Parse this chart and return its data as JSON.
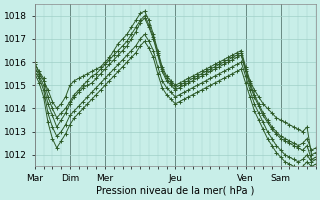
{
  "background_color": "#c8eee8",
  "grid_color": "#a0d0c8",
  "line_color": "#2d5a27",
  "marker_color": "#2d5a27",
  "xlabel": "Pression niveau de la mer( hPa )",
  "ylim": [
    1011.5,
    1018.5
  ],
  "yticks": [
    1012,
    1013,
    1014,
    1015,
    1016,
    1017,
    1018
  ],
  "day_labels": [
    "Mar",
    "Dim",
    "Mer",
    "Jeu",
    "Ven",
    "Sam"
  ],
  "day_tick_positions": [
    0,
    8,
    16,
    32,
    48,
    56
  ],
  "day_line_positions": [
    0,
    8,
    16,
    32,
    48,
    56,
    64
  ],
  "xmax": 64,
  "series": [
    [
      1016.0,
      1015.5,
      1015.2,
      1014.8,
      1014.3,
      1014.0,
      1014.2,
      1014.5,
      1015.0,
      1015.2,
      1015.3,
      1015.4,
      1015.5,
      1015.6,
      1015.7,
      1015.8,
      1016.0,
      1016.2,
      1016.5,
      1016.8,
      1017.0,
      1017.2,
      1017.5,
      1017.8,
      1018.1,
      1018.2,
      1017.8,
      1017.2,
      1016.5,
      1015.8,
      1015.4,
      1015.2,
      1015.0,
      1015.1,
      1015.2,
      1015.3,
      1015.4,
      1015.5,
      1015.6,
      1015.7,
      1015.8,
      1015.9,
      1016.0,
      1016.1,
      1016.2,
      1016.3,
      1016.4,
      1016.5,
      1015.8,
      1015.2,
      1014.8,
      1014.5,
      1014.2,
      1014.0,
      1013.8,
      1013.6,
      1013.5,
      1013.4,
      1013.3,
      1013.2,
      1013.1,
      1013.0,
      1013.2,
      1012.0,
      1012.1
    ],
    [
      1015.8,
      1015.4,
      1015.0,
      1014.2,
      1013.7,
      1013.2,
      1013.5,
      1013.8,
      1014.2,
      1014.5,
      1014.7,
      1014.9,
      1015.0,
      1015.1,
      1015.3,
      1015.5,
      1015.7,
      1015.9,
      1016.1,
      1016.3,
      1016.5,
      1016.7,
      1017.0,
      1017.3,
      1017.7,
      1017.9,
      1017.5,
      1017.0,
      1016.3,
      1015.6,
      1015.2,
      1015.0,
      1014.8,
      1014.9,
      1015.0,
      1015.1,
      1015.2,
      1015.3,
      1015.4,
      1015.5,
      1015.6,
      1015.7,
      1015.8,
      1015.9,
      1016.0,
      1016.1,
      1016.2,
      1016.3,
      1015.6,
      1015.0,
      1014.5,
      1014.1,
      1013.7,
      1013.4,
      1013.1,
      1012.9,
      1012.7,
      1012.6,
      1012.5,
      1012.4,
      1012.3,
      1012.2,
      1012.4,
      1011.8,
      1011.9
    ],
    [
      1015.6,
      1015.3,
      1014.8,
      1013.8,
      1013.2,
      1012.8,
      1013.0,
      1013.3,
      1013.7,
      1013.9,
      1014.1,
      1014.3,
      1014.5,
      1014.7,
      1014.9,
      1015.1,
      1015.3,
      1015.5,
      1015.7,
      1015.9,
      1016.1,
      1016.3,
      1016.5,
      1016.7,
      1017.0,
      1017.2,
      1016.9,
      1016.5,
      1015.8,
      1015.2,
      1014.9,
      1014.7,
      1014.5,
      1014.6,
      1014.7,
      1014.8,
      1014.9,
      1015.0,
      1015.1,
      1015.2,
      1015.3,
      1015.4,
      1015.5,
      1015.6,
      1015.7,
      1015.8,
      1015.9,
      1016.0,
      1015.4,
      1014.8,
      1014.2,
      1013.8,
      1013.4,
      1013.0,
      1012.7,
      1012.4,
      1012.2,
      1012.0,
      1011.9,
      1011.8,
      1011.7,
      1011.8,
      1012.0,
      1011.7,
      1011.8
    ],
    [
      1015.5,
      1015.1,
      1014.5,
      1013.4,
      1012.7,
      1012.3,
      1012.6,
      1012.9,
      1013.3,
      1013.6,
      1013.8,
      1014.0,
      1014.2,
      1014.4,
      1014.6,
      1014.8,
      1015.0,
      1015.2,
      1015.4,
      1015.6,
      1015.8,
      1016.0,
      1016.2,
      1016.4,
      1016.7,
      1016.9,
      1016.6,
      1016.2,
      1015.5,
      1014.9,
      1014.6,
      1014.4,
      1014.2,
      1014.3,
      1014.4,
      1014.5,
      1014.6,
      1014.7,
      1014.8,
      1014.9,
      1015.0,
      1015.1,
      1015.2,
      1015.3,
      1015.4,
      1015.5,
      1015.6,
      1015.7,
      1015.1,
      1014.5,
      1013.9,
      1013.5,
      1013.1,
      1012.7,
      1012.4,
      1012.1,
      1011.9,
      1011.7,
      1011.6,
      1011.5,
      1011.4,
      1011.5,
      1011.7,
      1011.5,
      1011.6
    ],
    [
      1015.9,
      1015.6,
      1015.3,
      1014.5,
      1014.0,
      1013.6,
      1013.8,
      1014.0,
      1014.3,
      1014.6,
      1014.8,
      1015.0,
      1015.2,
      1015.4,
      1015.5,
      1015.7,
      1015.9,
      1016.1,
      1016.3,
      1016.5,
      1016.7,
      1016.9,
      1017.2,
      1017.5,
      1017.8,
      1018.0,
      1017.6,
      1017.1,
      1016.4,
      1015.7,
      1015.3,
      1015.1,
      1014.9,
      1015.0,
      1015.1,
      1015.2,
      1015.3,
      1015.4,
      1015.5,
      1015.6,
      1015.7,
      1015.8,
      1015.9,
      1016.0,
      1016.1,
      1016.2,
      1016.3,
      1016.4,
      1015.7,
      1015.1,
      1014.6,
      1014.2,
      1013.8,
      1013.5,
      1013.2,
      1013.0,
      1012.8,
      1012.7,
      1012.6,
      1012.5,
      1012.4,
      1012.5,
      1012.7,
      1012.2,
      1012.3
    ]
  ]
}
